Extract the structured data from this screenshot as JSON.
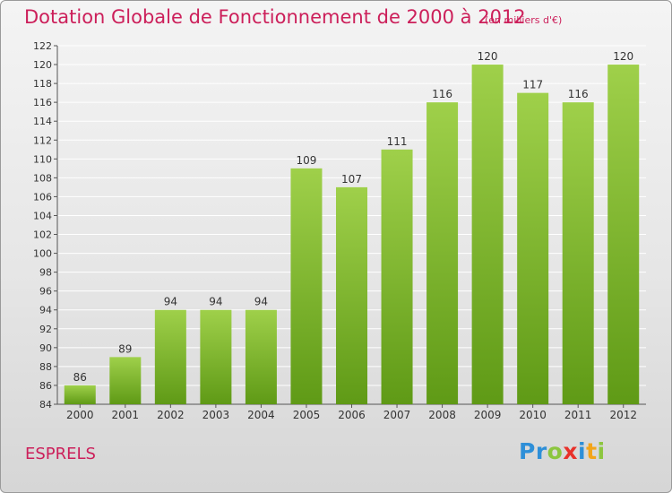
{
  "header": {
    "title": "Dotation Globale de Fonctionnement de 2000 à 2012",
    "subtitle": "(en milliers d'€)"
  },
  "footer": {
    "commune": "ESPRELS",
    "brand": "Proxiti"
  },
  "colors": {
    "title": "#cc1f5a",
    "bar_top": "#9fd04a",
    "bar_bottom": "#5f9a16",
    "grid": "#ffffff"
  },
  "chart_data": {
    "type": "bar",
    "title": "Dotation Globale de Fonctionnement de 2000 à 2012",
    "subtitle": "(en milliers d'€)",
    "xlabel": "",
    "ylabel": "",
    "categories": [
      "2000",
      "2001",
      "2002",
      "2003",
      "2004",
      "2005",
      "2006",
      "2007",
      "2008",
      "2009",
      "2010",
      "2011",
      "2012"
    ],
    "values": [
      86,
      89,
      94,
      94,
      94,
      109,
      107,
      111,
      116,
      120,
      117,
      116,
      120
    ],
    "ylim": [
      84,
      122
    ],
    "yticks": [
      84,
      86,
      88,
      90,
      92,
      94,
      96,
      98,
      100,
      102,
      104,
      106,
      108,
      110,
      112,
      114,
      116,
      118,
      120,
      122
    ],
    "grid": true,
    "legend": "none",
    "data_labels": true
  }
}
